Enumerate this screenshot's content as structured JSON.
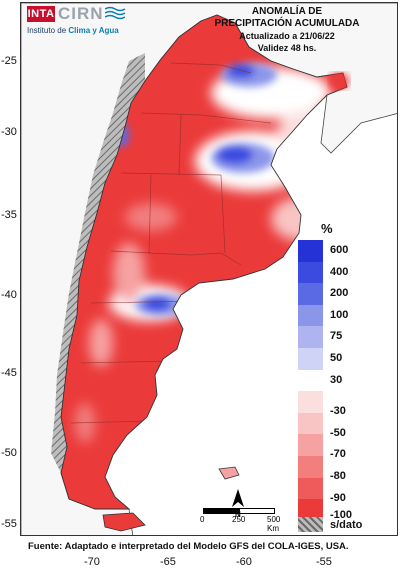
{
  "logo": {
    "inta": "INTA",
    "cirn": "CIRN",
    "institute_prefix": "Instituto de ",
    "institute_highlight": "Clima y Agua"
  },
  "title": {
    "line1": "ANOMALÍA DE",
    "line2": "PRECIPITACIÓN ACUMULADA",
    "updated": "Actualizado a 21/06/22",
    "validity": "Validez 48 hs."
  },
  "legend": {
    "unit": "%",
    "items": [
      {
        "label": "600",
        "color": "#2432d6"
      },
      {
        "label": "400",
        "color": "#3b4be0"
      },
      {
        "label": "200",
        "color": "#5a6ae4"
      },
      {
        "label": "100",
        "color": "#8b96ea"
      },
      {
        "label": "75",
        "color": "#adb4f0"
      },
      {
        "label": "50",
        "color": "#cfd3f6"
      },
      {
        "label": "30",
        "color": "#ffffff"
      },
      {
        "label": "-30",
        "color": "#fbdede"
      },
      {
        "label": "-50",
        "color": "#f9c4c4"
      },
      {
        "label": "-70",
        "color": "#f6a2a2"
      },
      {
        "label": "-80",
        "color": "#f27e7e"
      },
      {
        "label": "-90",
        "color": "#ef5a5a"
      },
      {
        "label": "-100",
        "color": "#eb3a3a"
      }
    ],
    "nodata_label": "s/dato",
    "nodata_color": "#8a8a8a"
  },
  "scale": {
    "labels": [
      "0",
      "250",
      "500 Km"
    ]
  },
  "north_label": "N",
  "latitude_labels": [
    "-25",
    "-30",
    "-35",
    "-40",
    "-45",
    "-50",
    "-55"
  ],
  "longitude_labels": [
    "-70",
    "-65",
    "-60",
    "-55"
  ],
  "source": "Fuente: Adaptado e interpretado del Modelo GFS del COLA-IGES, USA."
}
